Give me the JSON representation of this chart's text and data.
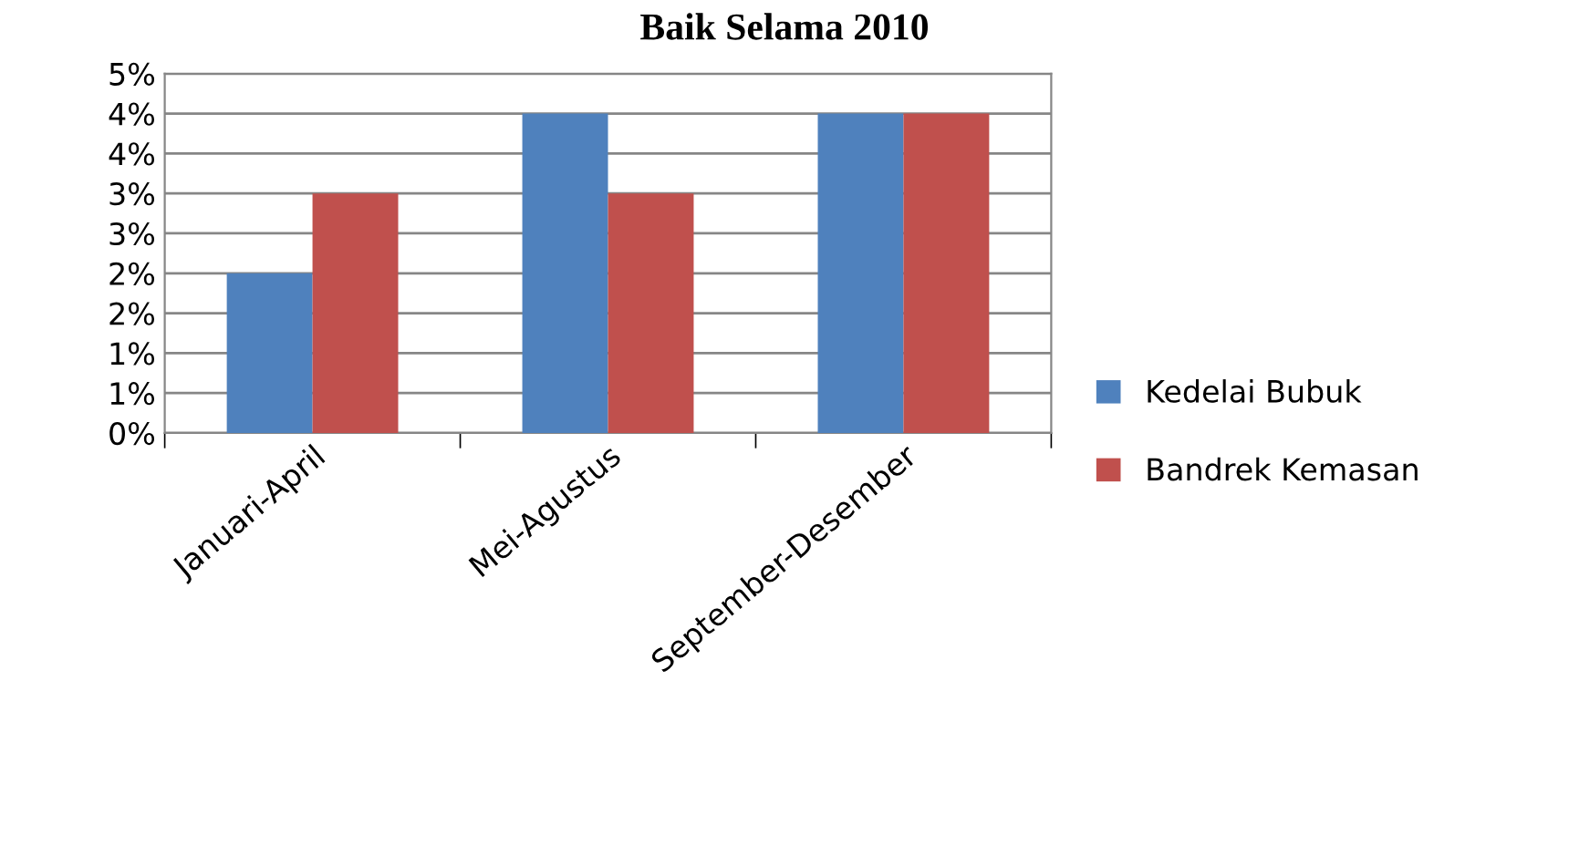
{
  "chart_data": {
    "type": "bar",
    "title": "Baik Selama 2010",
    "categories": [
      "Januari-April",
      "Mei-Agustus",
      "September-Desember"
    ],
    "series": [
      {
        "name": "Kedelai Bubuk",
        "color": "#4f81bd",
        "values": [
          2.0,
          4.0,
          4.0
        ]
      },
      {
        "name": "Bandrek Kemasan",
        "color": "#c0504d",
        "values": [
          3.0,
          3.0,
          4.0
        ]
      }
    ],
    "ylim": [
      0,
      4.5
    ],
    "yticks": [
      {
        "value": 0,
        "label": "0%"
      },
      {
        "value": 0.5,
        "label": "1%"
      },
      {
        "value": 1.0,
        "label": "1%"
      },
      {
        "value": 1.5,
        "label": "2%"
      },
      {
        "value": 2.0,
        "label": "2%"
      },
      {
        "value": 2.5,
        "label": "3%"
      },
      {
        "value": 3.0,
        "label": "3%"
      },
      {
        "value": 3.5,
        "label": "4%"
      },
      {
        "value": 4.0,
        "label": "4%"
      },
      {
        "value": 4.5,
        "label": "5%"
      }
    ],
    "grid": "y",
    "legend": "right"
  }
}
